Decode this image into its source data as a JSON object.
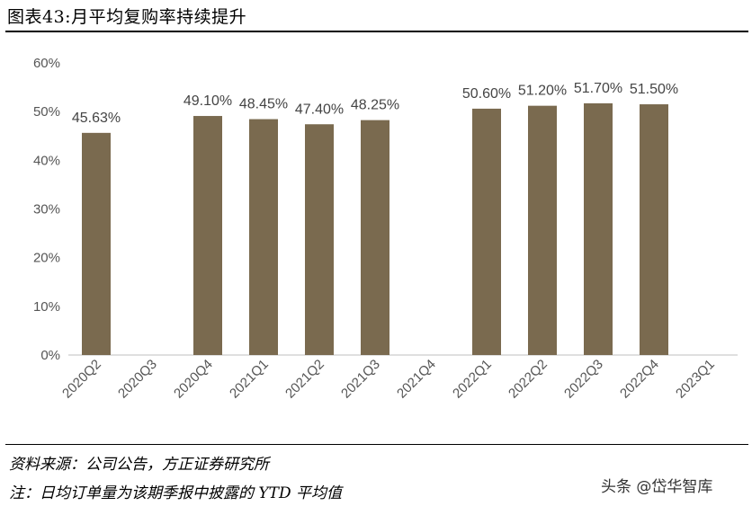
{
  "header": {
    "title": "图表43:月平均复购率持续提升"
  },
  "footer": {
    "source": "资料来源：公司公告，方正证券研究所",
    "note": "注：日均订单量为该期季报中披露的 YTD 平均值",
    "watermark": "头条 @岱华智库"
  },
  "colors": {
    "bar": "#7a6a4f",
    "axis": "#bfbfbf"
  },
  "chart_data": {
    "type": "bar",
    "title": "月平均复购率持续提升",
    "categories": [
      "2020Q2",
      "2020Q3",
      "2020Q4",
      "2021Q1",
      "2021Q2",
      "2021Q3",
      "2021Q4",
      "2022Q1",
      "2022Q2",
      "2022Q3",
      "2022Q4",
      "2023Q1"
    ],
    "values": [
      45.63,
      null,
      49.1,
      48.45,
      47.4,
      48.25,
      null,
      50.6,
      51.2,
      51.7,
      51.5,
      null
    ],
    "data_labels": [
      "45.63%",
      "",
      "49.10%",
      "48.45%",
      "47.40%",
      "48.25%",
      "",
      "50.60%",
      "51.20%",
      "51.70%",
      "51.50%",
      ""
    ],
    "ylim": [
      0,
      60
    ],
    "yticks": [
      0,
      10,
      20,
      30,
      40,
      50,
      60
    ],
    "ytick_labels": [
      "0%",
      "10%",
      "20%",
      "30%",
      "40%",
      "50%",
      "60%"
    ],
    "xlabel": "",
    "ylabel": "",
    "grid": false
  }
}
